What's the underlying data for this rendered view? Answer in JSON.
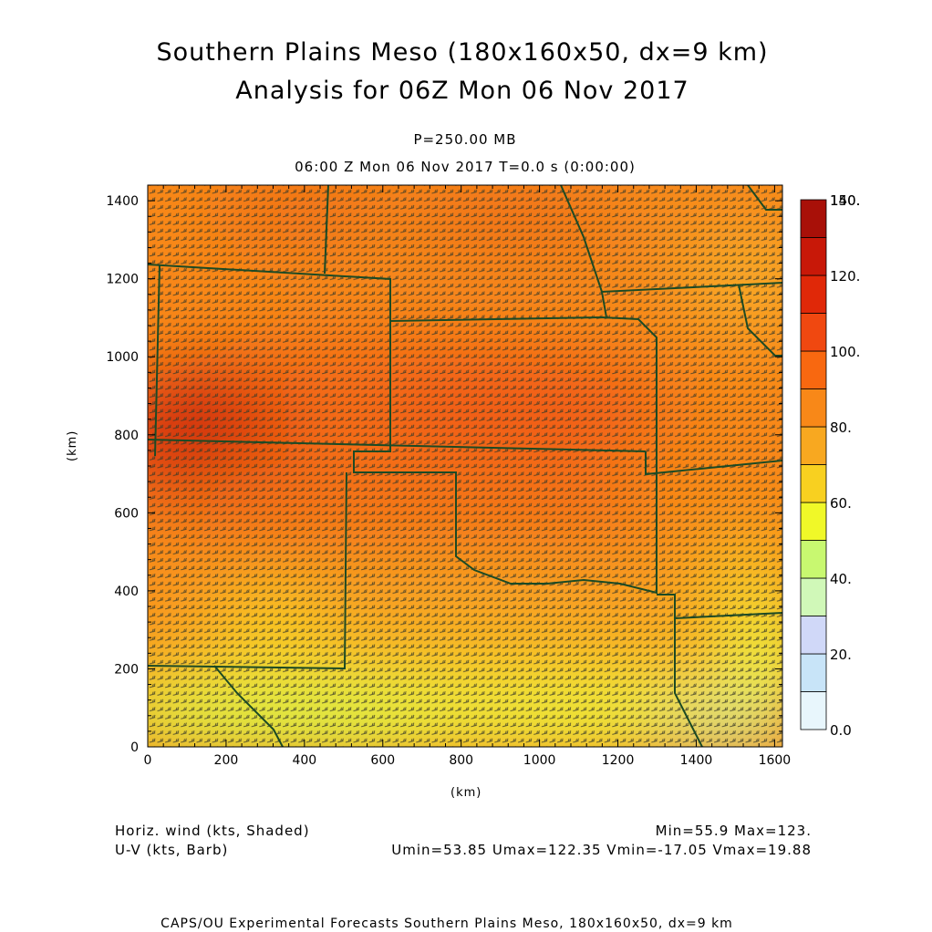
{
  "header": {
    "title_line1": "Southern Plains Meso (180x160x50, dx=9 km)",
    "title_line2": "Analysis for 06Z Mon 06 Nov 2017",
    "level": "P=250.00 MB",
    "time": "06:00 Z Mon 06 Nov 2017    T=0.0 s (0:00:00)"
  },
  "footer": {
    "field1": "Horiz. wind (kts, Shaded)",
    "field2": "U-V (kts, Barb)",
    "minmax": "Min=55.9 Max=123.",
    "uv_stats": "Umin=53.85 Umax=122.35 Vmin=-17.05 Vmax=19.88",
    "credit": "CAPS/OU Experimental Forecasts  Southern Plains Meso, 180x160x50, dx=9 km"
  },
  "chart_data": {
    "type": "heatmap",
    "xlabel": "(km)",
    "ylabel": "(km)",
    "xlim": [
      0,
      1620
    ],
    "ylim": [
      0,
      1440
    ],
    "x_ticks": [
      "0",
      "200",
      "400",
      "600",
      "800",
      "1000",
      "1200",
      "1400",
      "1600"
    ],
    "y_ticks": [
      "0",
      "200",
      "400",
      "600",
      "800",
      "1000",
      "1200",
      "1400"
    ],
    "colorbar": {
      "labels": [
        "0.0",
        "20.",
        "40.",
        "60.",
        "80.",
        "100.",
        "120.",
        "140.",
        "150."
      ],
      "colors": [
        "#e8f6fc",
        "#c8e4f8",
        "#d0d8f8",
        "#d0f8b8",
        "#c8f870",
        "#f0f828",
        "#f8d020",
        "#f8a820",
        "#f88818",
        "#f86810",
        "#f04810",
        "#e02808",
        "#c81808",
        "#a81008"
      ]
    },
    "wind_min": 55.9,
    "wind_max": 123,
    "u_min": 53.85,
    "u_max": 122.35,
    "v_min": -17.05,
    "v_max": 19.88
  }
}
